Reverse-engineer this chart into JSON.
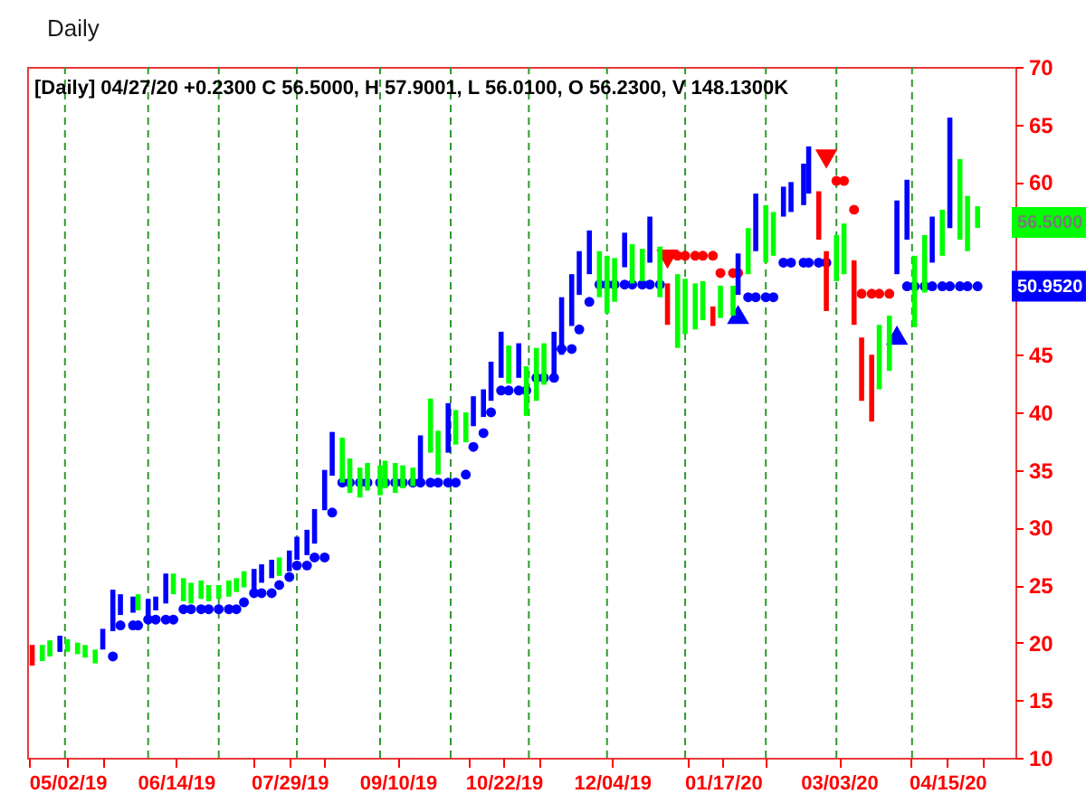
{
  "chart_data": {
    "type": "bar",
    "title": "Daily",
    "subtitle": "[Daily] 04/27/20  +0.2300 C 56.5000, H 57.9001, L 56.0100, O 56.2300, V 148.1300K",
    "x": [
      "2019-04-18",
      "2019-04-22",
      "2019-04-25",
      "2019-04-29",
      "2019-05-02",
      "2019-05-06",
      "2019-05-09",
      "2019-05-13",
      "2019-05-16",
      "2019-05-20",
      "2019-05-23",
      "2019-05-28",
      "2019-05-30",
      "2019-06-03",
      "2019-06-06",
      "2019-06-10",
      "2019-06-13",
      "2019-06-17",
      "2019-06-20",
      "2019-06-24",
      "2019-06-27",
      "2019-07-01",
      "2019-07-05",
      "2019-07-08",
      "2019-07-11",
      "2019-07-15",
      "2019-07-18",
      "2019-07-22",
      "2019-07-25",
      "2019-07-29",
      "2019-08-01",
      "2019-08-05",
      "2019-08-08",
      "2019-08-12",
      "2019-08-15",
      "2019-08-19",
      "2019-08-22",
      "2019-08-26",
      "2019-08-29",
      "2019-09-03",
      "2019-09-05",
      "2019-09-09",
      "2019-09-12",
      "2019-09-16",
      "2019-09-19",
      "2019-09-23",
      "2019-09-26",
      "2019-09-30",
      "2019-10-03",
      "2019-10-07",
      "2019-10-10",
      "2019-10-14",
      "2019-10-17",
      "2019-10-21",
      "2019-10-24",
      "2019-10-28",
      "2019-10-31",
      "2019-11-04",
      "2019-11-07",
      "2019-11-11",
      "2019-11-14",
      "2019-11-18",
      "2019-11-21",
      "2019-11-25",
      "2019-11-29",
      "2019-12-02",
      "2019-12-05",
      "2019-12-09",
      "2019-12-12",
      "2019-12-16",
      "2019-12-19",
      "2019-12-23",
      "2019-12-26",
      "2019-12-30",
      "2020-01-02",
      "2020-01-06",
      "2020-01-09",
      "2020-01-13",
      "2020-01-16",
      "2020-01-21",
      "2020-01-23",
      "2020-01-27",
      "2020-01-30",
      "2020-02-03",
      "2020-02-06",
      "2020-02-10",
      "2020-02-13",
      "2020-02-18",
      "2020-02-20",
      "2020-02-24",
      "2020-02-27",
      "2020-03-02",
      "2020-03-05",
      "2020-03-09",
      "2020-03-12",
      "2020-03-16",
      "2020-03-19",
      "2020-03-23",
      "2020-03-26",
      "2020-03-30",
      "2020-04-02",
      "2020-04-06",
      "2020-04-09",
      "2020-04-13",
      "2020-04-16",
      "2020-04-20",
      "2020-04-23",
      "2020-04-27"
    ],
    "base": [
      18.0,
      18.4,
      18.8,
      19.2,
      19.2,
      19.0,
      18.7,
      18.2,
      19.4,
      21.0,
      22.4,
      22.6,
      22.8,
      22.2,
      22.8,
      23.4,
      24.2,
      23.6,
      23.4,
      23.8,
      23.6,
      23.8,
      24.0,
      24.4,
      24.8,
      24.6,
      25.2,
      25.6,
      25.8,
      26.2,
      27.2,
      27.6,
      28.6,
      31.5,
      34.5,
      33.9,
      33.0,
      32.6,
      33.2,
      32.8,
      33.4,
      33.0,
      33.4,
      33.6,
      34.0,
      36.5,
      34.6,
      36.5,
      37.2,
      37.4,
      38.8,
      39.6,
      41.0,
      43.0,
      42.5,
      43.0,
      39.7,
      41.0,
      42.4,
      43.2,
      45.0,
      47.5,
      50.2,
      52.0,
      50.0,
      48.6,
      49.6,
      52.6,
      51.2,
      51.4,
      53.0,
      50.0,
      47.6,
      45.6,
      46.8,
      47.2,
      48.0,
      47.5,
      48.2,
      48.4,
      50.2,
      52.0,
      54.0,
      53.0,
      53.6,
      57.0,
      57.4,
      58.0,
      59.0,
      55.0,
      48.8,
      51.4,
      52.0,
      47.6,
      41.0,
      39.2,
      42.0,
      43.6,
      52.0,
      55.0,
      47.4,
      50.4,
      53.0,
      53.6,
      56.0,
      55.0,
      54.0,
      56.01
    ],
    "values": [
      1.8,
      1.4,
      1.4,
      1.4,
      1.1,
      1.0,
      1.1,
      1.2,
      1.8,
      3.6,
      1.8,
      1.4,
      1.4,
      1.6,
      1.2,
      2.6,
      1.8,
      2.0,
      1.8,
      1.6,
      1.4,
      1.2,
      1.4,
      1.2,
      1.4,
      1.8,
      1.6,
      1.6,
      1.6,
      1.8,
      2.0,
      2.2,
      3.0,
      3.5,
      3.8,
      3.9,
      3.0,
      2.6,
      2.4,
      2.6,
      2.4,
      2.6,
      2.0,
      1.6,
      4.0,
      4.7,
      3.8,
      4.3,
      3.0,
      2.6,
      2.6,
      2.4,
      3.4,
      4.0,
      3.3,
      3.0,
      4.3,
      4.6,
      3.6,
      3.8,
      5.0,
      4.5,
      3.8,
      3.8,
      4.0,
      5.0,
      3.8,
      3.0,
      3.4,
      2.8,
      4.0,
      4.4,
      3.6,
      6.4,
      4.8,
      4.0,
      3.4,
      1.7,
      2.8,
      2.6,
      3.6,
      4.0,
      5.0,
      5.0,
      3.8,
      2.6,
      2.6,
      3.6,
      4.1,
      4.2,
      5.2,
      4.0,
      4.4,
      5.6,
      5.5,
      5.8,
      5.6,
      4.8,
      6.4,
      5.2,
      6.2,
      5.0,
      4.0,
      4.0,
      9.6,
      7.0,
      4.8,
      1.89
    ],
    "colors": [
      "#ff0000",
      "#00ff00",
      "#00ff00",
      "#0000ff",
      "#00ff00",
      "#00ff00",
      "#00ff00",
      "#00ff00",
      "#0000ff",
      "#0000ff",
      "#0000ff",
      "#0000ff",
      "#00ff00",
      "#0000ff",
      "#0000ff",
      "#0000ff",
      "#00ff00",
      "#00ff00",
      "#00ff00",
      "#00ff00",
      "#00ff00",
      "#00ff00",
      "#00ff00",
      "#00ff00",
      "#00ff00",
      "#0000ff",
      "#0000ff",
      "#0000ff",
      "#00ff00",
      "#0000ff",
      "#0000ff",
      "#0000ff",
      "#0000ff",
      "#0000ff",
      "#0000ff",
      "#00ff00",
      "#00ff00",
      "#00ff00",
      "#00ff00",
      "#00ff00",
      "#00ff00",
      "#00ff00",
      "#00ff00",
      "#00ff00",
      "#0000ff",
      "#00ff00",
      "#00ff00",
      "#0000ff",
      "#00ff00",
      "#00ff00",
      "#0000ff",
      "#0000ff",
      "#0000ff",
      "#0000ff",
      "#00ff00",
      "#0000ff",
      "#00ff00",
      "#00ff00",
      "#00ff00",
      "#0000ff",
      "#0000ff",
      "#0000ff",
      "#0000ff",
      "#0000ff",
      "#00ff00",
      "#00ff00",
      "#00ff00",
      "#0000ff",
      "#00ff00",
      "#00ff00",
      "#0000ff",
      "#00ff00",
      "#ff0000",
      "#00ff00",
      "#00ff00",
      "#00ff00",
      "#00ff00",
      "#ff0000",
      "#00ff00",
      "#00ff00",
      "#0000ff",
      "#00ff00",
      "#0000ff",
      "#00ff00",
      "#00ff00",
      "#0000ff",
      "#0000ff",
      "#0000ff",
      "#0000ff",
      "#ff0000",
      "#ff0000",
      "#00ff00",
      "#00ff00",
      "#ff0000",
      "#ff0000",
      "#ff0000",
      "#00ff00",
      "#00ff00",
      "#0000ff",
      "#0000ff",
      "#00ff00",
      "#00ff00",
      "#0000ff",
      "#00ff00",
      "#0000ff",
      "#00ff00",
      "#00ff00",
      "#00ff00"
    ],
    "annotations": [
      {
        "text": "56.5000",
        "x": "2020-04-27",
        "y": 56.5
      },
      {
        "text": "50.9520",
        "x": "2020-04-27",
        "y": 50.952
      }
    ],
    "series": [
      {
        "type": "scatter",
        "color": "#0000ff",
        "marker": "circle",
        "values": [
          null,
          null,
          null,
          null,
          null,
          null,
          null,
          null,
          null,
          18.8,
          21.5,
          21.5,
          21.5,
          22.0,
          22.0,
          22.0,
          22.0,
          22.9,
          22.9,
          22.9,
          22.9,
          22.9,
          22.9,
          22.9,
          23.5,
          24.3,
          24.3,
          24.3,
          25.0,
          25.7,
          26.7,
          26.7,
          27.4,
          27.4,
          31.3,
          33.9,
          33.9,
          33.9,
          33.9,
          33.9,
          33.9,
          33.9,
          33.9,
          33.9,
          33.9,
          33.9,
          33.9,
          33.9,
          33.9,
          34.6,
          37.0,
          38.2,
          40.0,
          41.9,
          41.9,
          41.9,
          41.9,
          43.0,
          43.0,
          43.0,
          45.5,
          45.5,
          47.2,
          49.6,
          51.1,
          51.1,
          51.1,
          51.1,
          51.1,
          51.1,
          51.1,
          51.1,
          null,
          null,
          null,
          null,
          null,
          null,
          null,
          null,
          null,
          50.0,
          50.0,
          50.0,
          50.0,
          53.0,
          53.0,
          53.0,
          53.0,
          53.0,
          53.0,
          null,
          null,
          null,
          null,
          null,
          null,
          null,
          null,
          50.952,
          50.952,
          50.952,
          50.952,
          50.952,
          50.952,
          50.952,
          50.952,
          50.952
        ]
      },
      {
        "type": "scatter",
        "color": "#ff0000",
        "marker": "circle",
        "values": [
          null,
          null,
          null,
          null,
          null,
          null,
          null,
          null,
          null,
          null,
          null,
          null,
          null,
          null,
          null,
          null,
          null,
          null,
          null,
          null,
          null,
          null,
          null,
          null,
          null,
          null,
          null,
          null,
          null,
          null,
          null,
          null,
          null,
          null,
          null,
          null,
          null,
          null,
          null,
          null,
          null,
          null,
          null,
          null,
          null,
          null,
          null,
          null,
          null,
          null,
          null,
          null,
          null,
          null,
          null,
          null,
          null,
          null,
          null,
          null,
          null,
          null,
          null,
          null,
          null,
          null,
          null,
          null,
          null,
          null,
          null,
          null,
          null,
          53.6,
          53.6,
          53.6,
          53.6,
          53.6,
          52.1,
          52.1,
          52.1,
          null,
          null,
          null,
          null,
          null,
          null,
          null,
          null,
          null,
          null,
          60.1,
          60.1,
          57.6,
          50.3,
          50.3,
          50.3,
          50.3,
          null,
          null,
          null,
          null,
          null,
          null,
          null,
          null,
          null,
          null
        ]
      },
      {
        "type": "scatter",
        "color": "#0000ff",
        "marker": "triangle",
        "values": [
          null,
          null,
          null,
          null,
          null,
          null,
          null,
          null,
          null,
          null,
          null,
          null,
          null,
          null,
          null,
          null,
          null,
          null,
          null,
          null,
          null,
          null,
          null,
          null,
          null,
          null,
          null,
          null,
          null,
          null,
          null,
          null,
          null,
          null,
          null,
          null,
          null,
          null,
          null,
          null,
          null,
          null,
          null,
          null,
          null,
          null,
          null,
          null,
          null,
          null,
          null,
          null,
          null,
          null,
          null,
          null,
          null,
          null,
          null,
          null,
          null,
          null,
          null,
          null,
          null,
          null,
          null,
          null,
          null,
          null,
          null,
          null,
          null,
          null,
          null,
          null,
          null,
          null,
          null,
          null,
          48.5,
          null,
          null,
          null,
          null,
          null,
          null,
          null,
          null,
          null,
          null,
          null,
          null,
          null,
          null,
          null,
          null,
          null,
          46.7,
          null,
          null,
          null,
          null,
          null,
          null,
          null,
          null,
          null
        ]
      },
      {
        "type": "scatter",
        "color": "#ff0000",
        "marker": "triangle-down",
        "values": [
          null,
          null,
          null,
          null,
          null,
          null,
          null,
          null,
          null,
          null,
          null,
          null,
          null,
          null,
          null,
          null,
          null,
          null,
          null,
          null,
          null,
          null,
          null,
          null,
          null,
          null,
          null,
          null,
          null,
          null,
          null,
          null,
          null,
          null,
          null,
          null,
          null,
          null,
          null,
          null,
          null,
          null,
          null,
          null,
          null,
          null,
          null,
          null,
          null,
          null,
          null,
          null,
          null,
          null,
          null,
          null,
          null,
          null,
          null,
          null,
          null,
          null,
          null,
          null,
          null,
          null,
          null,
          null,
          null,
          null,
          null,
          null,
          53.3,
          null,
          null,
          null,
          null,
          null,
          null,
          null,
          null,
          null,
          null,
          null,
          null,
          null,
          null,
          null,
          null,
          null,
          62.0,
          null,
          null,
          null,
          null,
          null,
          null,
          null,
          null,
          null,
          null,
          null,
          null,
          null,
          null,
          null,
          null,
          null
        ]
      }
    ],
    "xlim": [
      "2019-04-16",
      "2020-05-12"
    ],
    "xticks": [
      {
        "value": "2019-04-17",
        "label": null
      },
      {
        "value": "2019-05-02",
        "label": "05/02/19"
      },
      {
        "value": "2019-05-16",
        "label": null
      },
      {
        "value": "2019-06-14",
        "label": "06/14/19"
      },
      {
        "value": "2019-07-15",
        "label": null
      },
      {
        "value": "2019-07-29",
        "label": "07/29/19"
      },
      {
        "value": "2019-08-12",
        "label": null
      },
      {
        "value": "2019-09-10",
        "label": "09/10/19"
      },
      {
        "value": "2019-10-08",
        "label": null
      },
      {
        "value": "2019-10-22",
        "label": "10/22/19"
      },
      {
        "value": "2019-11-05",
        "label": null
      },
      {
        "value": "2019-12-04",
        "label": "12/04/19"
      },
      {
        "value": "2020-01-03",
        "label": null
      },
      {
        "value": "2020-01-17",
        "label": "01/17/20"
      },
      {
        "value": "2020-02-03",
        "label": null
      },
      {
        "value": "2020-03-03",
        "label": "03/03/20"
      },
      {
        "value": "2020-03-31",
        "label": null
      },
      {
        "value": "2020-04-15",
        "label": "04/15/20"
      },
      {
        "value": "2020-04-29",
        "label": null
      }
    ],
    "ylim": [
      10,
      70
    ],
    "yticks": [
      10,
      15,
      20,
      25,
      30,
      35,
      40,
      45,
      60,
      65,
      70
    ],
    "ref_lines": [
      {
        "axis": "x",
        "value": "2019-05-01",
        "color": "#2f9a2f",
        "line_style": "dashed"
      },
      {
        "axis": "x",
        "value": "2019-06-03",
        "color": "#2f9a2f",
        "line_style": "dashed"
      },
      {
        "axis": "x",
        "value": "2019-07-01",
        "color": "#2f9a2f",
        "line_style": "dashed"
      },
      {
        "axis": "x",
        "value": "2019-08-01",
        "color": "#2f9a2f",
        "line_style": "dashed"
      },
      {
        "axis": "x",
        "value": "2019-09-03",
        "color": "#2f9a2f",
        "line_style": "dashed"
      },
      {
        "axis": "x",
        "value": "2019-10-01",
        "color": "#2f9a2f",
        "line_style": "dashed"
      },
      {
        "axis": "x",
        "value": "2019-11-01",
        "color": "#2f9a2f",
        "line_style": "dashed"
      },
      {
        "axis": "x",
        "value": "2019-12-02",
        "color": "#2f9a2f",
        "line_style": "dashed"
      },
      {
        "axis": "x",
        "value": "2020-01-02",
        "color": "#2f9a2f",
        "line_style": "dashed"
      },
      {
        "axis": "x",
        "value": "2020-02-03",
        "color": "#2f9a2f",
        "line_style": "dashed"
      },
      {
        "axis": "x",
        "value": "2020-03-02",
        "color": "#2f9a2f",
        "line_style": "dashed"
      },
      {
        "axis": "x",
        "value": "2020-04-01",
        "color": "#2f9a2f",
        "line_style": "dashed"
      }
    ]
  }
}
